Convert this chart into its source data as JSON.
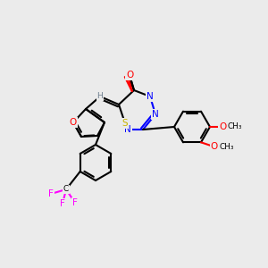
{
  "background_color": "#ebebeb",
  "fig_width": 3.0,
  "fig_height": 3.0,
  "dpi": 100,
  "lw": 1.5,
  "colors": {
    "C": "#000000",
    "N": "#0000ff",
    "O": "#ff0000",
    "S": "#c8b400",
    "F": "#ff00ff",
    "H": "#708090"
  },
  "font_size": 7.5
}
